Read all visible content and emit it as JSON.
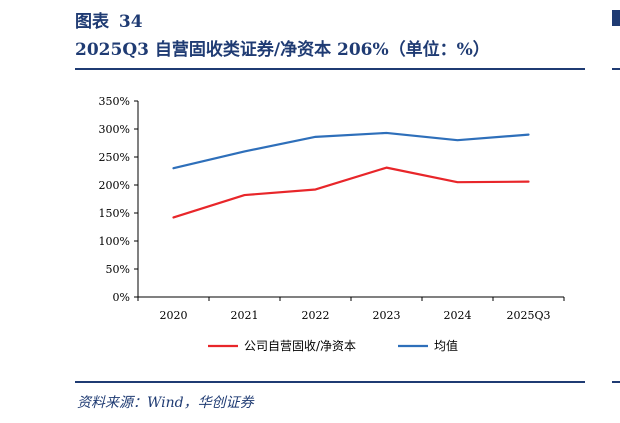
{
  "figure": {
    "label": "图表",
    "number": "34",
    "title": "2025Q3 自营固收类证券/净资本 206%（单位：%）"
  },
  "source": "资料来源：Wind，华创证券",
  "colors": {
    "series1": "#e8262a",
    "series2": "#2e6fba",
    "rule": "#1f3b73"
  },
  "chart_data": {
    "type": "line",
    "categories": [
      "2020",
      "2021",
      "2022",
      "2023",
      "2024",
      "2025Q3"
    ],
    "series": [
      {
        "name": "公司自营固收/净资本",
        "values": [
          142,
          182,
          192,
          231,
          205,
          206
        ],
        "color": "#e8262a"
      },
      {
        "name": "均值",
        "values": [
          230,
          260,
          286,
          293,
          280,
          290
        ],
        "color": "#2e6fba"
      }
    ],
    "ylim": [
      0,
      350
    ],
    "yticks": [
      "0%",
      "50%",
      "100%",
      "150%",
      "200%",
      "250%",
      "300%",
      "350%"
    ],
    "grid": false,
    "legend": "bottom"
  }
}
